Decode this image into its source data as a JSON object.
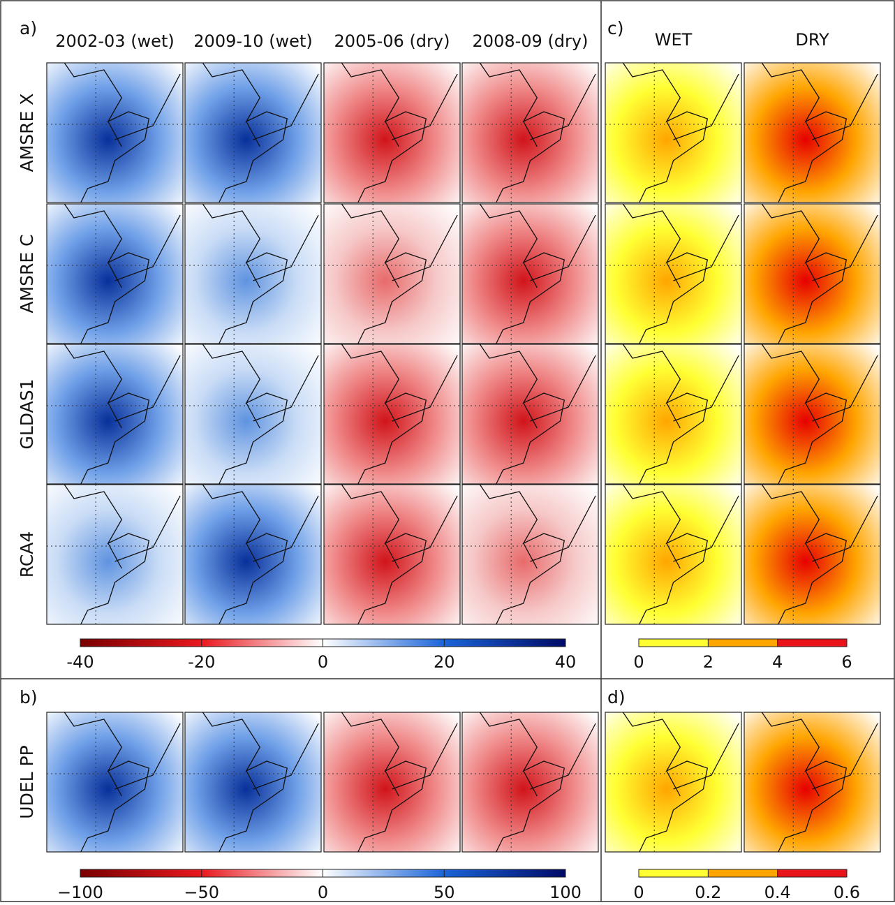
{
  "panel_labels": {
    "a": "a)",
    "b": "b)",
    "c": "c)",
    "d": "d)"
  },
  "column_headers": [
    "2002-03 (wet)",
    "2009-10 (wet)",
    "2005-06 (dry)",
    "2008-09 (dry)"
  ],
  "frequency_headers": [
    "WET",
    "DRY"
  ],
  "row_labels": [
    "AMSRE X",
    "AMSRE C",
    "GLDAS1",
    "RCA4",
    "UDEL PP"
  ],
  "colorbars": {
    "a": {
      "ticks": [
        -40,
        -20,
        0,
        20,
        40
      ]
    },
    "b": {
      "ticks": [
        {
          "value": -100,
          "label": "−100"
        },
        {
          "value": -50,
          "label": "−50"
        },
        0,
        50,
        100
      ]
    },
    "c": {
      "ticks": [
        0,
        2,
        4,
        6
      ]
    },
    "d": {
      "ticks": [
        0,
        0.2,
        0.4,
        0.6
      ]
    }
  }
}
